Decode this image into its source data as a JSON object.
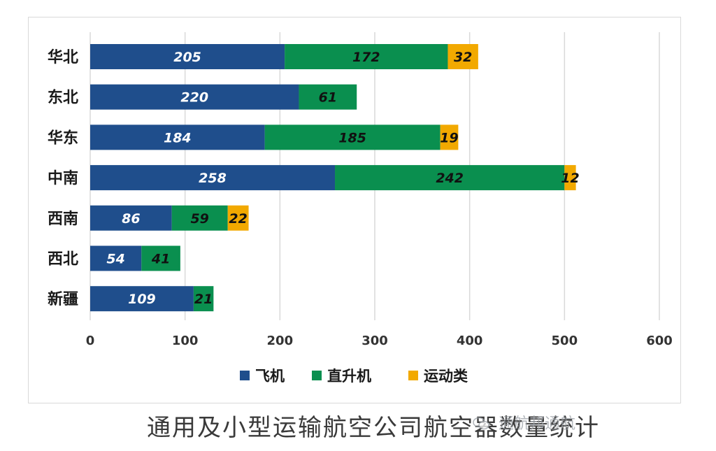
{
  "chart_data": {
    "type": "bar",
    "orientation": "horizontal",
    "stacked": true,
    "categories": [
      "华北",
      "东北",
      "华东",
      "中南",
      "西南",
      "西北",
      "新疆"
    ],
    "series": [
      {
        "name": "飞机",
        "color": "#1f4e8c",
        "values": [
          205,
          220,
          184,
          258,
          86,
          54,
          109
        ]
      },
      {
        "name": "直升机",
        "color": "#0a8f4f",
        "values": [
          172,
          61,
          185,
          242,
          59,
          41,
          21
        ]
      },
      {
        "name": "运动类",
        "color": "#f2a900",
        "values": [
          32,
          null,
          19,
          12,
          22,
          null,
          null
        ]
      }
    ],
    "xlim": [
      0,
      600
    ],
    "xticks": [
      "0",
      "100",
      "200",
      "300",
      "400",
      "500",
      "600"
    ],
    "grid": true,
    "legend_position": "bottom",
    "title": "通用及小型运输航空公司航空器数量统计"
  },
  "watermark": {
    "text": "通航邦通航",
    "icon": "wechat-icon"
  }
}
